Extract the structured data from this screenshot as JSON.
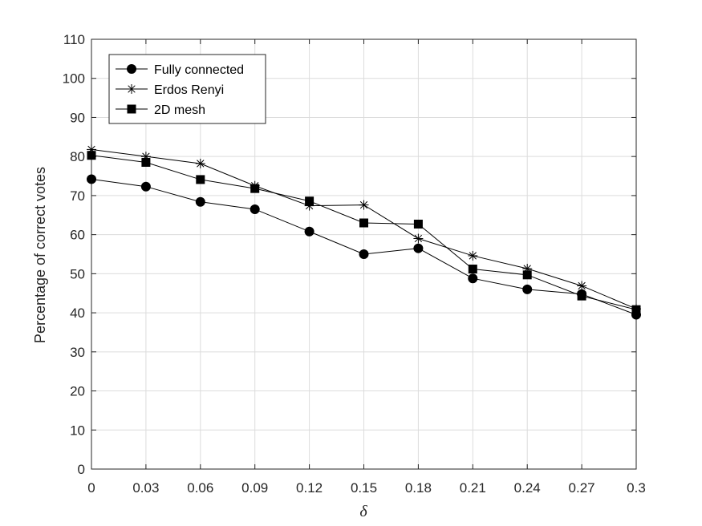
{
  "chart_data": {
    "type": "line",
    "title": "",
    "xlabel": "δ",
    "ylabel": "Percentage of correct votes",
    "x": [
      0,
      0.03,
      0.06,
      0.09,
      0.12,
      0.15,
      0.18,
      0.21,
      0.24,
      0.27,
      0.3
    ],
    "x_tick_labels": [
      "0",
      "0.03",
      "0.06",
      "0.09",
      "0.12",
      "0.15",
      "0.18",
      "0.21",
      "0.24",
      "0.27",
      "0.3"
    ],
    "y_tick_labels": [
      "0",
      "10",
      "20",
      "30",
      "40",
      "50",
      "60",
      "70",
      "80",
      "90",
      "100",
      "110"
    ],
    "xlim": [
      0,
      0.3
    ],
    "ylim": [
      0,
      110
    ],
    "grid": true,
    "legend_position": "top-left",
    "series": [
      {
        "name": "Fully connected",
        "marker": "circle",
        "values": [
          74.2,
          72.3,
          68.4,
          66.5,
          60.8,
          55.0,
          56.5,
          48.8,
          46.0,
          44.8,
          39.5
        ]
      },
      {
        "name": "Erdos Renyi",
        "marker": "asterisk",
        "values": [
          81.8,
          80.0,
          78.2,
          72.5,
          67.4,
          67.6,
          59.0,
          54.6,
          51.3,
          46.9,
          41.0
        ]
      },
      {
        "name": "2D mesh",
        "marker": "square",
        "values": [
          80.3,
          78.5,
          74.1,
          71.8,
          68.6,
          63.0,
          62.7,
          51.2,
          49.7,
          44.3,
          40.8
        ]
      }
    ],
    "colors": {
      "line": "#000000",
      "grid": "#dcdcdc",
      "axis": "#262626"
    }
  }
}
